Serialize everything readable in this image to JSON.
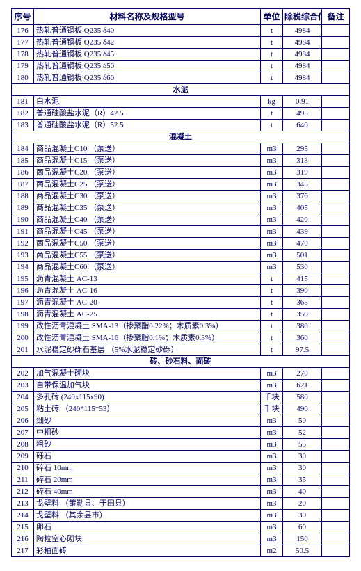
{
  "headers": {
    "seq": "序号",
    "name": "材料名称及规格型号",
    "unit": "单位",
    "price": "除税综合信息价",
    "note": "备注"
  },
  "groups": [
    {
      "section": null,
      "rows": [
        {
          "seq": "176",
          "name": "热轧普通钢板 Q235 δ40",
          "unit": "t",
          "price": "4984",
          "note": ""
        },
        {
          "seq": "177",
          "name": "热轧普通钢板 Q235 δ42",
          "unit": "t",
          "price": "4984",
          "note": ""
        },
        {
          "seq": "178",
          "name": "热轧普通钢板 Q235 δ45",
          "unit": "t",
          "price": "4984",
          "note": ""
        },
        {
          "seq": "179",
          "name": "热轧普通钢板 Q235 δ50",
          "unit": "t",
          "price": "4984",
          "note": ""
        },
        {
          "seq": "180",
          "name": "热轧普通钢板 Q235 δ60",
          "unit": "t",
          "price": "4984",
          "note": ""
        }
      ]
    },
    {
      "section": "水泥",
      "rows": [
        {
          "seq": "181",
          "name": "白水泥",
          "unit": "kg",
          "price": "0.91",
          "note": ""
        },
        {
          "seq": "182",
          "name": "普通硅酸盐水泥（R）42.5",
          "unit": "t",
          "price": "495",
          "note": ""
        },
        {
          "seq": "183",
          "name": "普通硅酸盐水泥（R）52.5",
          "unit": "t",
          "price": "640",
          "note": ""
        }
      ]
    },
    {
      "section": "混凝土",
      "rows": [
        {
          "seq": "184",
          "name": "商品混凝土C10 （泵送）",
          "unit": "m3",
          "price": "295",
          "note": ""
        },
        {
          "seq": "185",
          "name": "商品混凝土C15 （泵送）",
          "unit": "m3",
          "price": "313",
          "note": ""
        },
        {
          "seq": "186",
          "name": "商品混凝土C20 （泵送）",
          "unit": "m3",
          "price": "319",
          "note": ""
        },
        {
          "seq": "187",
          "name": "商品混凝土C25 （泵送）",
          "unit": "m3",
          "price": "345",
          "note": ""
        },
        {
          "seq": "188",
          "name": "商品混凝土C30 （泵送）",
          "unit": "m3",
          "price": "376",
          "note": ""
        },
        {
          "seq": "189",
          "name": "商品混凝土C35 （泵送）",
          "unit": "m3",
          "price": "405",
          "note": ""
        },
        {
          "seq": "190",
          "name": "商品混凝土C40 （泵送）",
          "unit": "m3",
          "price": "420",
          "note": ""
        },
        {
          "seq": "191",
          "name": "商品混凝土C45 （泵送）",
          "unit": "m3",
          "price": "439",
          "note": ""
        },
        {
          "seq": "192",
          "name": "商品混凝土C50 （泵送）",
          "unit": "m3",
          "price": "470",
          "note": ""
        },
        {
          "seq": "193",
          "name": "商品混凝土C55 （泵送）",
          "unit": "m3",
          "price": "501",
          "note": ""
        },
        {
          "seq": "194",
          "name": "商品混凝土C60 （泵送）",
          "unit": "m3",
          "price": "530",
          "note": ""
        },
        {
          "seq": "195",
          "name": "沥青混凝土  AC-13",
          "unit": "t",
          "price": "415",
          "note": ""
        },
        {
          "seq": "196",
          "name": "沥青混凝土  AC-16",
          "unit": "t",
          "price": "390",
          "note": ""
        },
        {
          "seq": "197",
          "name": "沥青混凝土  AC-20",
          "unit": "t",
          "price": "365",
          "note": ""
        },
        {
          "seq": "198",
          "name": "沥青混凝土  AC-25",
          "unit": "t",
          "price": "350",
          "note": ""
        },
        {
          "seq": "199",
          "name": "改性沥青混凝土 SMA-13（掺聚酯0.22%；木质素0.3%）",
          "unit": "t",
          "price": "380",
          "note": ""
        },
        {
          "seq": "200",
          "name": "改性沥青混凝土 SMA-16（掺聚脂0.1%；木质素0.3%）",
          "unit": "t",
          "price": "360",
          "note": ""
        },
        {
          "seq": "201",
          "name": "水泥稳定砂砾石基层    （5%水泥稳定砂砾）",
          "unit": "t",
          "price": "97.5",
          "note": ""
        }
      ]
    },
    {
      "section": "砖、砂石料、面砖",
      "rows": [
        {
          "seq": "202",
          "name": "加气混凝土砌块",
          "unit": "m3",
          "price": "270",
          "note": ""
        },
        {
          "seq": "203",
          "name": "自带保温加气块",
          "unit": "m3",
          "price": "621",
          "note": ""
        },
        {
          "seq": "204",
          "name": "多孔砖  (240x115x90)",
          "unit": "千块",
          "price": "580",
          "note": ""
        },
        {
          "seq": "205",
          "name": "粘土砖  （240*115*53）",
          "unit": "千块",
          "price": "490",
          "note": ""
        },
        {
          "seq": "206",
          "name": "细砂",
          "unit": "m3",
          "price": "50",
          "note": ""
        },
        {
          "seq": "207",
          "name": "中粗砂",
          "unit": "m3",
          "price": "52",
          "note": ""
        },
        {
          "seq": "208",
          "name": "粗砂",
          "unit": "m3",
          "price": "55",
          "note": ""
        },
        {
          "seq": "209",
          "name": "砾石",
          "unit": "m3",
          "price": "30",
          "note": ""
        },
        {
          "seq": "210",
          "name": "碎石 10mm",
          "unit": "m3",
          "price": "30",
          "note": ""
        },
        {
          "seq": "211",
          "name": "碎石 20mm",
          "unit": "m3",
          "price": "35",
          "note": ""
        },
        {
          "seq": "212",
          "name": "碎石 40mm",
          "unit": "m3",
          "price": "40",
          "note": ""
        },
        {
          "seq": "213",
          "name": "戈壁料 （策勒县、于田县）",
          "unit": "m3",
          "price": "20",
          "note": ""
        },
        {
          "seq": "214",
          "name": "戈壁料 （其余县市）",
          "unit": "m3",
          "price": "30",
          "note": ""
        },
        {
          "seq": "215",
          "name": "卵石",
          "unit": "m3",
          "price": "60",
          "note": ""
        },
        {
          "seq": "216",
          "name": "陶粒空心砌块",
          "unit": "m3",
          "price": "150",
          "note": ""
        },
        {
          "seq": "217",
          "name": "彩釉面砖",
          "unit": "m2",
          "price": "50.5",
          "note": ""
        }
      ]
    }
  ]
}
